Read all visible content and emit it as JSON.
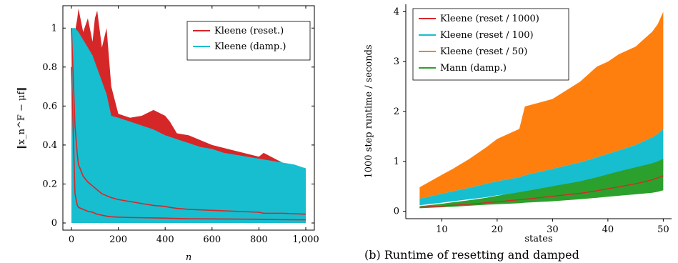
{
  "chart_data": [
    {
      "type": "area",
      "xlabel": "n",
      "ylabel": "‖x_n^F − μf‖",
      "xlim": [
        0,
        1000
      ],
      "ylim": [
        0,
        1.1
      ],
      "xticks": [
        0,
        200,
        400,
        600,
        800,
        1000
      ],
      "xtick_labels": [
        "0",
        "200",
        "400",
        "600",
        "800",
        "1,000"
      ],
      "yticks": [
        0,
        0.2,
        0.4,
        0.6,
        0.8,
        1
      ],
      "ytick_labels": [
        "0",
        "0.2",
        "0.4",
        "0.6",
        "0.8",
        "1"
      ],
      "legend_position": "top-right",
      "grid": false,
      "series": [
        {
          "name": "Kleene (reset.)",
          "color": "#d62728",
          "x": [
            0,
            15,
            25,
            30,
            50,
            70,
            90,
            100,
            110,
            130,
            150,
            170,
            200,
            250,
            300,
            350,
            400,
            420,
            450,
            500,
            600,
            700,
            800,
            820,
            900,
            1000
          ],
          "upper": [
            1.0,
            0.98,
            1.05,
            1.1,
            0.98,
            1.05,
            0.93,
            1.05,
            1.09,
            0.9,
            1.0,
            0.7,
            0.56,
            0.54,
            0.55,
            0.58,
            0.55,
            0.52,
            0.46,
            0.45,
            0.4,
            0.37,
            0.34,
            0.36,
            0.31,
            0.28
          ],
          "lower": [
            0.0,
            0.0,
            0.0,
            0.0,
            0.0,
            0.0,
            0.0,
            0.0,
            0.0,
            0.0,
            0.0,
            0.0,
            0.0,
            0.0,
            0.0,
            0.0,
            0.0,
            0.0,
            0.0,
            0.0,
            0.0,
            0.0,
            0.0,
            0.0,
            0.0,
            0.0
          ],
          "line_upper": [
            1.0,
            0.5,
            0.35,
            0.3,
            0.24,
            0.21,
            0.19,
            0.18,
            0.17,
            0.15,
            0.14,
            0.13,
            0.12,
            0.11,
            0.1,
            0.09,
            0.085,
            0.08,
            0.075,
            0.07,
            0.065,
            0.06,
            0.055,
            0.05,
            0.05,
            0.045
          ],
          "line_lower": [
            0.8,
            0.15,
            0.09,
            0.08,
            0.07,
            0.06,
            0.055,
            0.05,
            0.045,
            0.04,
            0.035,
            0.032,
            0.03,
            0.028,
            0.027,
            0.026,
            0.025,
            0.024,
            0.023,
            0.022,
            0.021,
            0.02,
            0.019,
            0.018,
            0.017,
            0.016
          ]
        },
        {
          "name": "Kleene (damp.)",
          "color": "#17becf",
          "x": [
            0,
            15,
            30,
            60,
            90,
            120,
            150,
            170,
            200,
            250,
            300,
            350,
            400,
            450,
            500,
            550,
            600,
            650,
            700,
            750,
            800,
            850,
            900,
            950,
            1000
          ],
          "upper": [
            1.0,
            1.0,
            0.98,
            0.92,
            0.86,
            0.76,
            0.66,
            0.55,
            0.54,
            0.52,
            0.5,
            0.48,
            0.45,
            0.43,
            0.41,
            0.39,
            0.38,
            0.36,
            0.35,
            0.34,
            0.33,
            0.32,
            0.31,
            0.3,
            0.28
          ],
          "lower": [
            0.0,
            0.0,
            0.0,
            0.0,
            0.0,
            0.0,
            0.0,
            0.0,
            0.0,
            0.0,
            0.0,
            0.0,
            0.0,
            0.0,
            0.0,
            0.0,
            0.0,
            0.0,
            0.0,
            0.0,
            0.0,
            0.0,
            0.0,
            0.0,
            0.0
          ]
        }
      ]
    },
    {
      "type": "area",
      "xlabel": "states",
      "ylabel": "1000 step runtime / seconds",
      "xlim": [
        3.5,
        51.5
      ],
      "ylim": [
        -0.15,
        4.15
      ],
      "xticks": [
        10,
        20,
        30,
        40,
        50
      ],
      "xtick_labels": [
        "10",
        "20",
        "30",
        "40",
        "50"
      ],
      "yticks": [
        0,
        1,
        2,
        3,
        4
      ],
      "ytick_labels": [
        "0",
        "1",
        "2",
        "3",
        "4"
      ],
      "legend_position": "top-left",
      "grid": false,
      "caption": "(b) Runtime of resetting and damped",
      "x": [
        6,
        10,
        12,
        15,
        18,
        20,
        24,
        25,
        30,
        35,
        38,
        40,
        42,
        45,
        48,
        49,
        50
      ],
      "series": [
        {
          "name": "Kleene (reset / 50)",
          "color": "#ff7f0e",
          "upper": [
            0.48,
            0.73,
            0.85,
            1.05,
            1.28,
            1.45,
            1.65,
            2.1,
            2.25,
            2.6,
            2.9,
            3.0,
            3.15,
            3.3,
            3.6,
            3.75,
            4.0
          ],
          "lower": [
            0.25,
            0.35,
            0.4,
            0.47,
            0.55,
            0.6,
            0.68,
            0.72,
            0.85,
            0.98,
            1.08,
            1.15,
            1.22,
            1.33,
            1.48,
            1.55,
            1.65
          ]
        },
        {
          "name": "Kleene (reset / 100)",
          "color": "#17becf",
          "upper": [
            0.25,
            0.35,
            0.4,
            0.47,
            0.55,
            0.6,
            0.68,
            0.72,
            0.85,
            0.98,
            1.08,
            1.15,
            1.22,
            1.33,
            1.48,
            1.55,
            1.65
          ],
          "lower": [
            0.12,
            0.17,
            0.2,
            0.24,
            0.28,
            0.32,
            0.36,
            0.38,
            0.44,
            0.5,
            0.55,
            0.58,
            0.62,
            0.68,
            0.75,
            0.78,
            0.82
          ]
        },
        {
          "name": "Mann (damp.)",
          "color": "#2ca02c",
          "upper": [
            0.1,
            0.15,
            0.18,
            0.22,
            0.27,
            0.31,
            0.38,
            0.4,
            0.5,
            0.6,
            0.68,
            0.74,
            0.8,
            0.88,
            0.96,
            1.0,
            1.05
          ],
          "lower": [
            0.06,
            0.08,
            0.09,
            0.11,
            0.13,
            0.14,
            0.16,
            0.17,
            0.2,
            0.24,
            0.27,
            0.29,
            0.31,
            0.34,
            0.37,
            0.39,
            0.42
          ]
        },
        {
          "name": "Kleene (reset / 1000)",
          "color": "#d62728",
          "values": [
            0.08,
            0.1,
            0.12,
            0.14,
            0.17,
            0.19,
            0.23,
            0.24,
            0.3,
            0.36,
            0.41,
            0.45,
            0.49,
            0.55,
            0.63,
            0.67,
            0.71
          ]
        }
      ],
      "legend_order": [
        "Kleene (reset / 1000)",
        "Kleene (reset / 100)",
        "Kleene (reset / 50)",
        "Mann (damp.)"
      ]
    }
  ]
}
